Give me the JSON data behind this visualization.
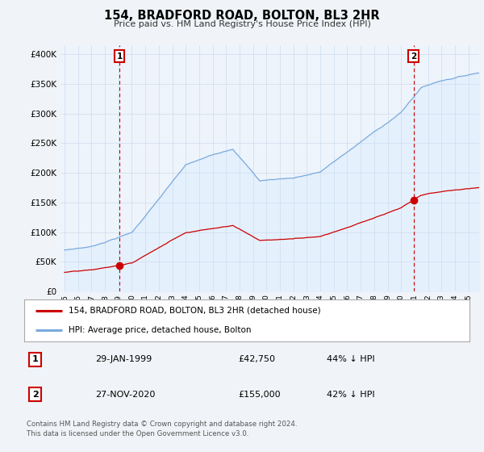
{
  "title": "154, BRADFORD ROAD, BOLTON, BL3 2HR",
  "subtitle": "Price paid vs. HM Land Registry's House Price Index (HPI)",
  "ylabel_ticks": [
    "£0",
    "£50K",
    "£100K",
    "£150K",
    "£200K",
    "£250K",
    "£300K",
    "£350K",
    "£400K"
  ],
  "ytick_values": [
    0,
    50000,
    100000,
    150000,
    200000,
    250000,
    300000,
    350000,
    400000
  ],
  "ylim": [
    0,
    415000
  ],
  "xlim_start": 1994.7,
  "xlim_end": 2025.8,
  "hpi_color": "#7aaadd",
  "hpi_fill_color": "#ddeeff",
  "price_color": "#cc0000",
  "marker1_date": 1999.08,
  "marker1_price": 42750,
  "marker1_label": "29-JAN-1999",
  "marker1_price_str": "£42,750",
  "marker1_pct": "44% ↓ HPI",
  "marker2_date": 2020.92,
  "marker2_price": 155000,
  "marker2_label": "27-NOV-2020",
  "marker2_price_str": "£155,000",
  "marker2_pct": "42% ↓ HPI",
  "legend_line1": "154, BRADFORD ROAD, BOLTON, BL3 2HR (detached house)",
  "legend_line2": "HPI: Average price, detached house, Bolton",
  "footer": "Contains HM Land Registry data © Crown copyright and database right 2024.\nThis data is licensed under the Open Government Licence v3.0.",
  "background_color": "#f0f4f8",
  "plot_bg_color": "#eef4fb",
  "grid_color": "#ccddee",
  "xtick_years": [
    1995,
    1996,
    1997,
    1998,
    1999,
    2000,
    2001,
    2002,
    2003,
    2004,
    2005,
    2006,
    2007,
    2008,
    2009,
    2010,
    2011,
    2012,
    2013,
    2014,
    2015,
    2016,
    2017,
    2018,
    2019,
    2020,
    2021,
    2022,
    2023,
    2024,
    2025
  ]
}
